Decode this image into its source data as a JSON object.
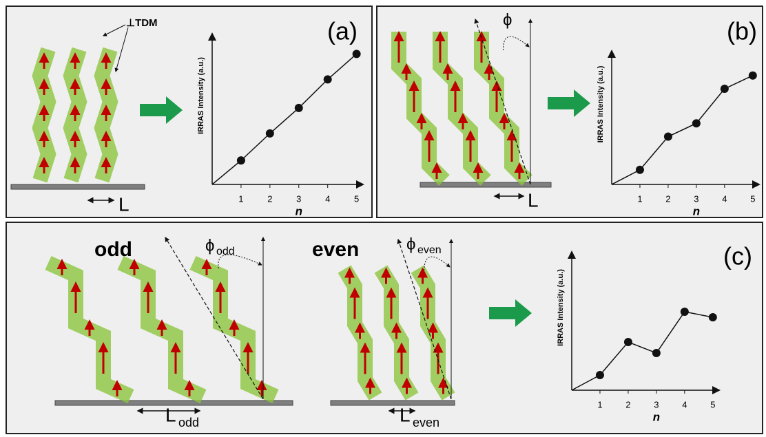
{
  "panels": [
    {
      "label": "(a)",
      "tdm_label": "⊥TDM",
      "length_label": "L",
      "chart": {
        "type": "line",
        "y_label": "IRRAS Intensity (a.u.)",
        "x_label": "n",
        "x": [
          1,
          2,
          3,
          4,
          5
        ],
        "values": [
          1.6,
          3.4,
          5.1,
          7.0,
          8.7
        ],
        "xticks": [
          1,
          2,
          3,
          4,
          5
        ],
        "xlim": [
          0,
          5.2
        ],
        "ylim": [
          0,
          10
        ],
        "color": "#111111"
      }
    },
    {
      "label": "(b)",
      "angle_label": "ϕ",
      "length_label": "L",
      "chart": {
        "type": "line",
        "y_label": "IRRAS Intensity (a.u.)",
        "x_label": "n",
        "x": [
          1,
          2,
          3,
          4,
          5
        ],
        "values": [
          1.1,
          3.6,
          4.6,
          7.2,
          8.2
        ],
        "xticks": [
          1,
          2,
          3,
          4,
          5
        ],
        "xlim": [
          0,
          5.2
        ],
        "ylim": [
          0,
          10
        ],
        "color": "#111111"
      }
    },
    {
      "label": "(c)",
      "groups": [
        {
          "title": "odd",
          "angle_label": "ϕ",
          "angle_subscript": "odd",
          "length_label": "L",
          "length_subscript": "odd"
        },
        {
          "title": "even",
          "angle_label": "ϕ",
          "angle_subscript": "even",
          "length_label": "L",
          "length_subscript": "even"
        }
      ],
      "chart": {
        "type": "line",
        "y_label": "IRRAS Intensity (a.u.)",
        "x_label": "n",
        "x": [
          1,
          2,
          3,
          4,
          5
        ],
        "values": [
          1.1,
          3.5,
          2.7,
          5.7,
          5.3
        ],
        "xticks": [
          1,
          2,
          3,
          4,
          5
        ],
        "xlim": [
          0,
          5.2
        ],
        "ylim": [
          0,
          10
        ],
        "color": "#111111"
      }
    }
  ]
}
